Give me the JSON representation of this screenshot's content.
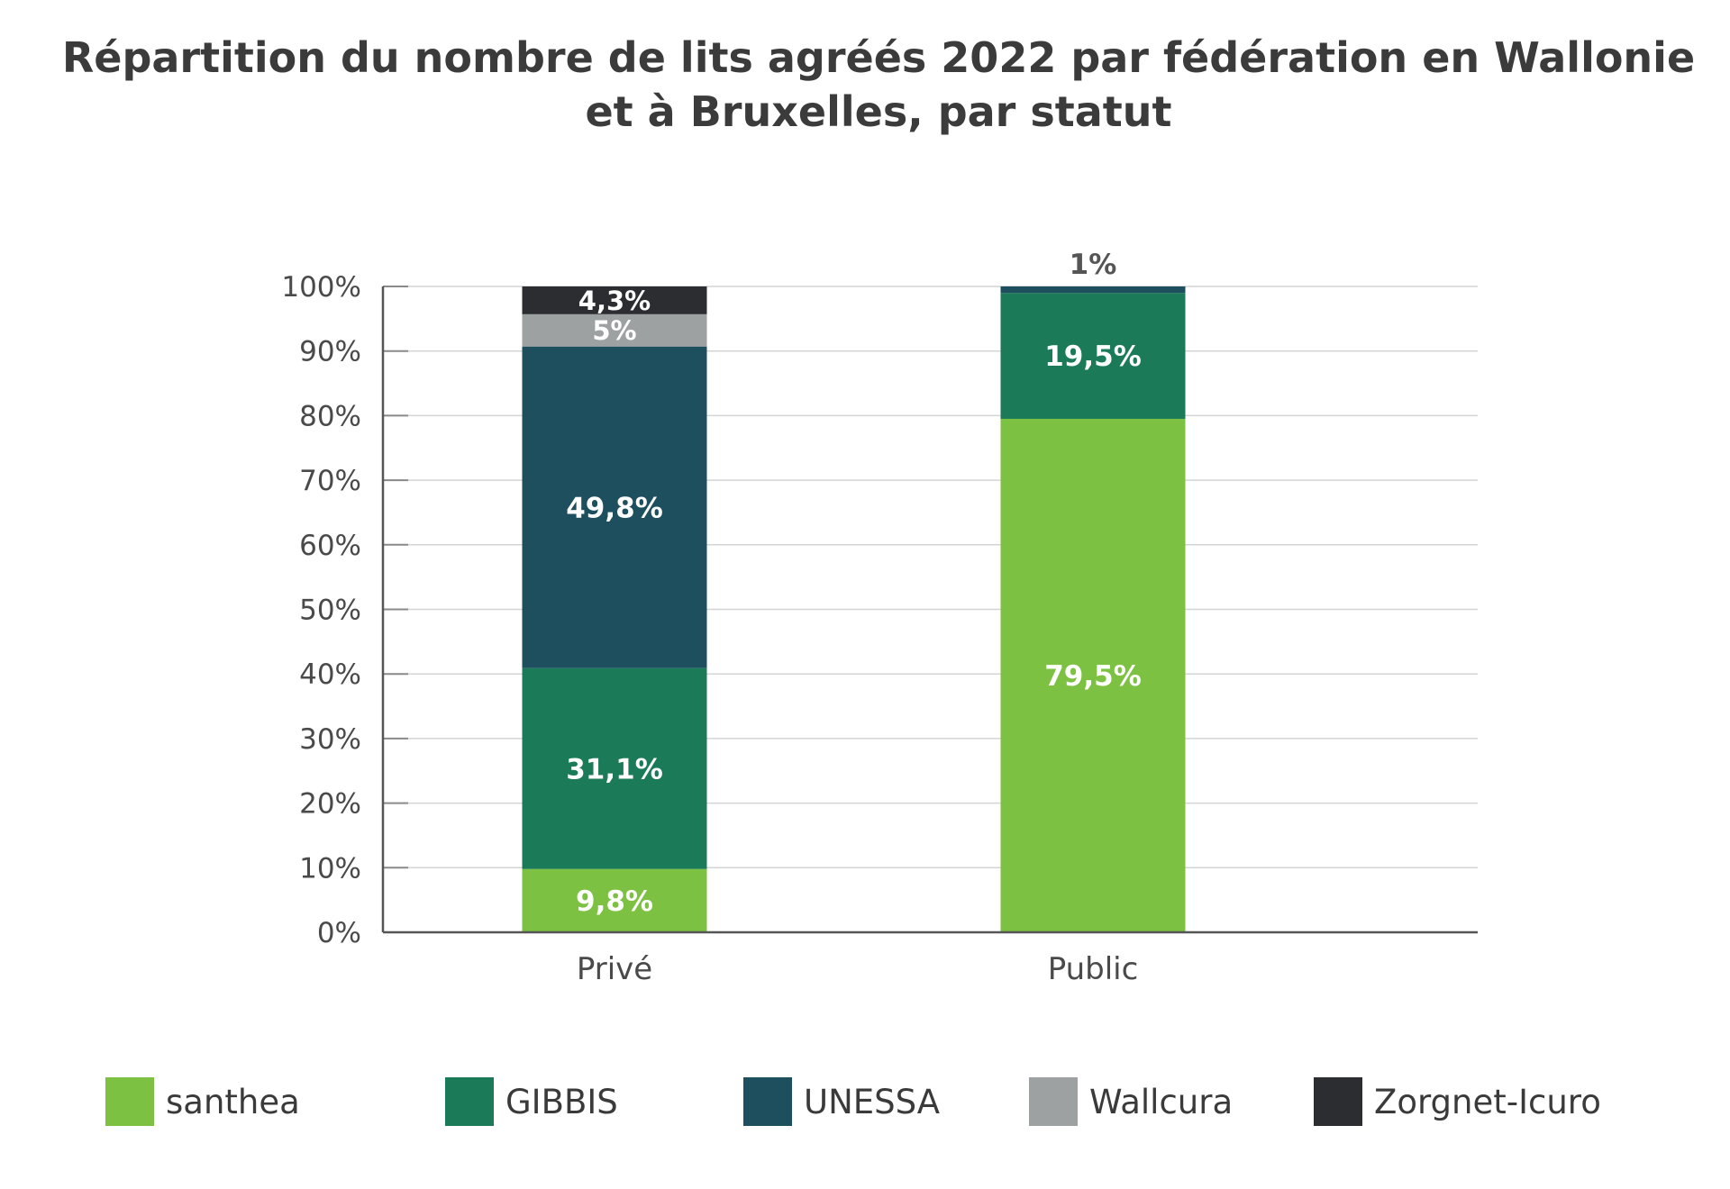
{
  "chart_data": {
    "type": "bar",
    "stacked": true,
    "title_lines": [
      "Répartition du nombre de lits agréés 2022 par fédération en Wallonie",
      "et à Bruxelles, par statut"
    ],
    "categories": [
      "Privé",
      "Public"
    ],
    "ylim": [
      0,
      100
    ],
    "y_ticks": [
      "0%",
      "10%",
      "20%",
      "30%",
      "40%",
      "50%",
      "60%",
      "70%",
      "80%",
      "90%",
      "100%"
    ],
    "grid": true,
    "legend_position": "bottom",
    "series": [
      {
        "name": "santhea",
        "color": "#7dc142",
        "values": [
          9.8,
          79.5
        ],
        "labels": [
          "9,8%",
          "79,5%"
        ]
      },
      {
        "name": "GIBBIS",
        "color": "#1b7a57",
        "values": [
          31.1,
          19.5
        ],
        "labels": [
          "31,1%",
          "19,5%"
        ]
      },
      {
        "name": "UNESSA",
        "color": "#1d4f5e",
        "values": [
          49.8,
          1
        ],
        "labels": [
          "49,8%",
          "1%"
        ]
      },
      {
        "name": "Wallcura",
        "color": "#9ea1a2",
        "values": [
          5,
          0
        ],
        "labels": [
          "5%",
          ""
        ]
      },
      {
        "name": "Zorgnet-Icuro",
        "color": "#2b2d30",
        "values": [
          4.3,
          0
        ],
        "labels": [
          "4,3%",
          ""
        ]
      }
    ]
  }
}
